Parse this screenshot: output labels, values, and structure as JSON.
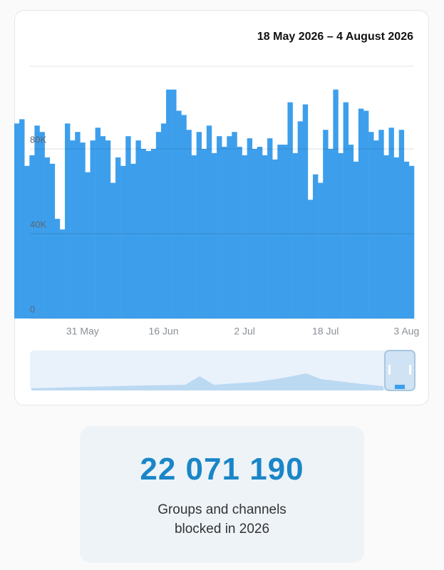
{
  "chart_data": {
    "type": "bar",
    "title": "18 May 2026 – 4 August 2026",
    "categories": [
      null,
      null,
      null,
      null,
      null,
      null,
      null,
      null,
      null,
      null,
      null,
      null,
      null,
      "31 May",
      null,
      null,
      null,
      null,
      null,
      null,
      null,
      null,
      null,
      null,
      null,
      null,
      null,
      null,
      null,
      "16 Jun",
      null,
      null,
      null,
      null,
      null,
      null,
      null,
      null,
      null,
      null,
      null,
      null,
      null,
      null,
      null,
      "2 Jul",
      null,
      null,
      null,
      null,
      null,
      null,
      null,
      null,
      null,
      null,
      null,
      null,
      null,
      null,
      null,
      "18 Jul",
      null,
      null,
      null,
      null,
      null,
      null,
      null,
      null,
      null,
      null,
      null,
      null,
      null,
      null,
      null,
      "3 Aug",
      null
    ],
    "values": [
      92000,
      94000,
      72000,
      77000,
      91000,
      88000,
      76000,
      73000,
      47000,
      42000,
      92000,
      84000,
      88000,
      83000,
      69000,
      84000,
      90000,
      86000,
      84000,
      64000,
      76000,
      72000,
      86000,
      73000,
      84000,
      80000,
      79000,
      80000,
      88000,
      92000,
      108000,
      108000,
      98000,
      96000,
      89000,
      77000,
      88000,
      80000,
      91000,
      78000,
      86000,
      81000,
      86000,
      88000,
      81000,
      77000,
      85000,
      80000,
      81000,
      77000,
      85000,
      75000,
      82000,
      82000,
      102000,
      78000,
      93000,
      101000,
      56000,
      68000,
      64000,
      89000,
      80000,
      108000,
      78000,
      102000,
      82000,
      74000,
      99000,
      98000,
      88000,
      84000,
      89000,
      77000,
      90000,
      76000,
      89000,
      74000,
      72000
    ],
    "color": "#3d9fec",
    "ylim": [
      0,
      120000
    ],
    "yticks": [
      0,
      {
        "value": 40000,
        "label": "40K"
      },
      {
        "value": 80000,
        "label": "80K"
      }
    ],
    "grid": true
  },
  "stat": {
    "value": "22 071 190",
    "caption": [
      "Groups and channels",
      "blocked in 2026"
    ]
  }
}
